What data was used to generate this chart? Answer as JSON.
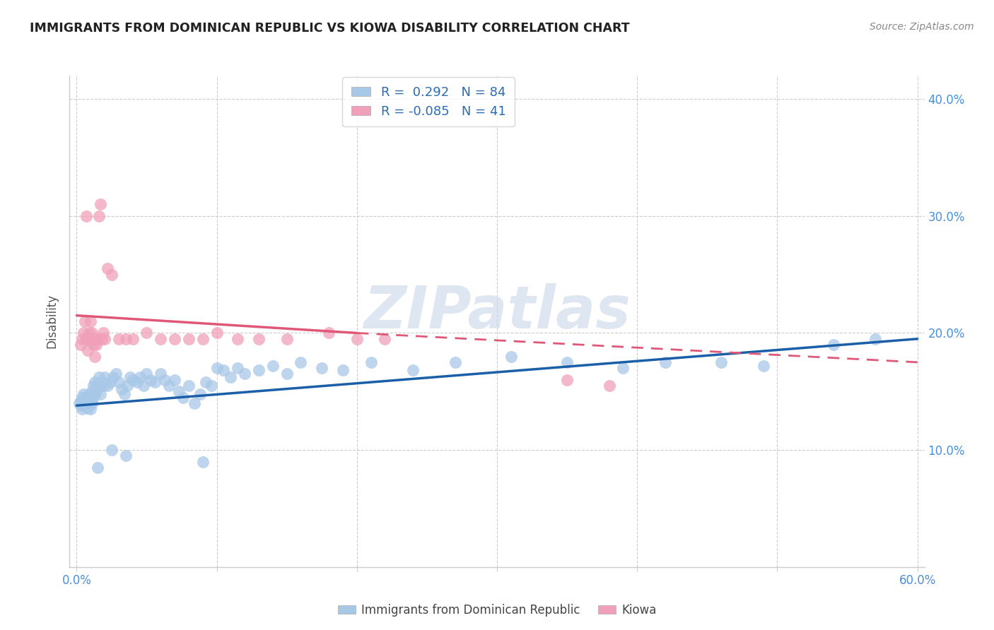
{
  "title": "IMMIGRANTS FROM DOMINICAN REPUBLIC VS KIOWA DISABILITY CORRELATION CHART",
  "source": "Source: ZipAtlas.com",
  "ylabel_text": "Disability",
  "xlim": [
    -0.005,
    0.605
  ],
  "ylim": [
    0.0,
    0.42
  ],
  "xticks": [
    0.0,
    0.1,
    0.2,
    0.3,
    0.4,
    0.5,
    0.6
  ],
  "yticks": [
    0.0,
    0.1,
    0.2,
    0.3,
    0.4
  ],
  "xticklabels": [
    "0.0%",
    "",
    "",
    "",
    "",
    "",
    "60.0%"
  ],
  "yticklabels_right": [
    "",
    "10.0%",
    "20.0%",
    "30.0%",
    "40.0%"
  ],
  "blue_color": "#a8c8e8",
  "pink_color": "#f0a0b8",
  "blue_line_color": "#1a5fa8",
  "pink_line_color": "#e05878",
  "R_blue": 0.292,
  "N_blue": 84,
  "R_pink": -0.085,
  "N_pink": 41,
  "legend_label_blue": "Immigrants from Dominican Republic",
  "legend_label_pink": "Kiowa",
  "watermark": "ZIPatlas",
  "blue_x": [
    0.002,
    0.003,
    0.003,
    0.004,
    0.004,
    0.005,
    0.005,
    0.005,
    0.006,
    0.006,
    0.007,
    0.007,
    0.008,
    0.008,
    0.009,
    0.009,
    0.01,
    0.01,
    0.011,
    0.011,
    0.012,
    0.012,
    0.013,
    0.013,
    0.014,
    0.015,
    0.016,
    0.017,
    0.018,
    0.019,
    0.02,
    0.022,
    0.024,
    0.026,
    0.028,
    0.03,
    0.032,
    0.034,
    0.036,
    0.038,
    0.04,
    0.043,
    0.045,
    0.048,
    0.05,
    0.053,
    0.056,
    0.06,
    0.063,
    0.066,
    0.07,
    0.073,
    0.076,
    0.08,
    0.084,
    0.088,
    0.092,
    0.096,
    0.1,
    0.105,
    0.11,
    0.115,
    0.12,
    0.13,
    0.14,
    0.15,
    0.16,
    0.175,
    0.19,
    0.21,
    0.24,
    0.27,
    0.31,
    0.35,
    0.39,
    0.42,
    0.46,
    0.49,
    0.54,
    0.57,
    0.09,
    0.035,
    0.025,
    0.015
  ],
  "blue_y": [
    0.14,
    0.138,
    0.142,
    0.135,
    0.145,
    0.138,
    0.142,
    0.148,
    0.14,
    0.145,
    0.138,
    0.142,
    0.136,
    0.145,
    0.14,
    0.148,
    0.135,
    0.145,
    0.14,
    0.15,
    0.145,
    0.155,
    0.148,
    0.158,
    0.15,
    0.155,
    0.162,
    0.148,
    0.158,
    0.155,
    0.162,
    0.155,
    0.158,
    0.162,
    0.165,
    0.158,
    0.152,
    0.148,
    0.155,
    0.162,
    0.16,
    0.158,
    0.162,
    0.155,
    0.165,
    0.16,
    0.158,
    0.165,
    0.16,
    0.155,
    0.16,
    0.15,
    0.145,
    0.155,
    0.14,
    0.148,
    0.158,
    0.155,
    0.17,
    0.168,
    0.162,
    0.17,
    0.165,
    0.168,
    0.172,
    0.165,
    0.175,
    0.17,
    0.168,
    0.175,
    0.168,
    0.175,
    0.18,
    0.175,
    0.17,
    0.175,
    0.175,
    0.172,
    0.19,
    0.195,
    0.09,
    0.095,
    0.1,
    0.085
  ],
  "pink_x": [
    0.003,
    0.004,
    0.005,
    0.006,
    0.007,
    0.007,
    0.008,
    0.008,
    0.009,
    0.01,
    0.01,
    0.011,
    0.012,
    0.012,
    0.013,
    0.014,
    0.015,
    0.016,
    0.017,
    0.018,
    0.019,
    0.02,
    0.022,
    0.025,
    0.03,
    0.035,
    0.04,
    0.05,
    0.06,
    0.07,
    0.08,
    0.09,
    0.1,
    0.115,
    0.13,
    0.15,
    0.18,
    0.2,
    0.22,
    0.35,
    0.38
  ],
  "pink_y": [
    0.19,
    0.195,
    0.2,
    0.21,
    0.3,
    0.195,
    0.185,
    0.195,
    0.2,
    0.195,
    0.21,
    0.2,
    0.195,
    0.19,
    0.18,
    0.19,
    0.195,
    0.3,
    0.31,
    0.195,
    0.2,
    0.195,
    0.255,
    0.25,
    0.195,
    0.195,
    0.195,
    0.2,
    0.195,
    0.195,
    0.195,
    0.195,
    0.2,
    0.195,
    0.195,
    0.195,
    0.2,
    0.195,
    0.195,
    0.16,
    0.155
  ]
}
